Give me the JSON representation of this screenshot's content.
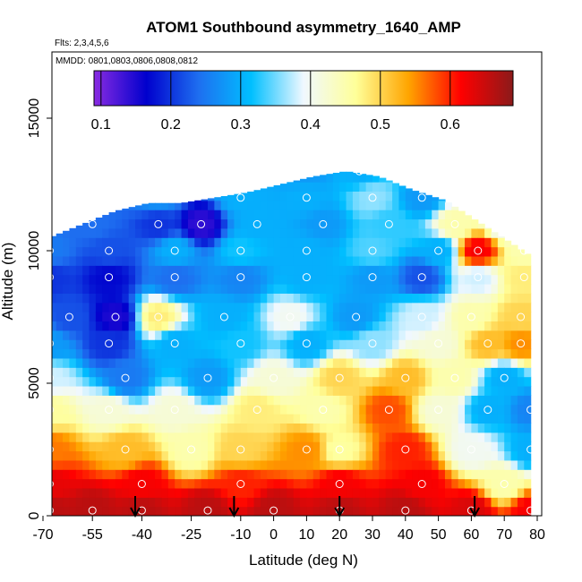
{
  "chart_data": {
    "type": "heatmap",
    "title": "ATOM1 Southbound asymmetry_1640_AMP",
    "flights_note": "Flts: 2,3,4,5,6",
    "dates_note": "MMDD: 0801,0803,0806,0808,0812",
    "xlabel": "Latitude (deg N)",
    "ylabel": "Altitude (m)",
    "xlim": [
      -70,
      80
    ],
    "ylim": [
      0,
      17500
    ],
    "x_ticks": [
      -70,
      -55,
      -40,
      -25,
      -10,
      0,
      10,
      20,
      30,
      40,
      50,
      60,
      70,
      80
    ],
    "y_ticks": [
      0,
      5000,
      10000,
      15000
    ],
    "colorbar": {
      "range": [
        0.09,
        0.69
      ],
      "ticks": [
        0.1,
        0.2,
        0.3,
        0.4,
        0.5,
        0.6
      ],
      "tick_labels": [
        "0.1",
        "0.2",
        "0.3",
        "0.4",
        "0.5",
        "0.6"
      ],
      "colors": [
        "#8a2be2",
        "#0000cd",
        "#1e6ff0",
        "#00bfff",
        "#f0f8ff",
        "#ffff99",
        "#ffa500",
        "#ff0000",
        "#8b1a1a"
      ]
    },
    "upper_boundary": {
      "lat": [
        -68,
        -58,
        -48,
        -38,
        -28,
        -18,
        -8,
        2,
        12,
        22,
        32,
        42,
        52,
        62,
        72,
        78
      ],
      "alt": [
        10500,
        11000,
        11500,
        11800,
        11800,
        12000,
        12200,
        12500,
        12800,
        13000,
        12800,
        12300,
        11900,
        11100,
        10300,
        9800
      ]
    },
    "profile_latitudes": [
      -42,
      -12,
      20,
      61
    ],
    "samples": [
      {
        "lat": -68,
        "alt": 200,
        "v": 0.66
      },
      {
        "lat": -55,
        "alt": 200,
        "v": 0.66
      },
      {
        "lat": -40,
        "alt": 200,
        "v": 0.66
      },
      {
        "lat": -20,
        "alt": 200,
        "v": 0.66
      },
      {
        "lat": 0,
        "alt": 200,
        "v": 0.66
      },
      {
        "lat": 20,
        "alt": 200,
        "v": 0.66
      },
      {
        "lat": 40,
        "alt": 200,
        "v": 0.66
      },
      {
        "lat": 60,
        "alt": 200,
        "v": 0.64
      },
      {
        "lat": 78,
        "alt": 200,
        "v": 0.62
      },
      {
        "lat": -68,
        "alt": 1200,
        "v": 0.63
      },
      {
        "lat": -40,
        "alt": 1200,
        "v": 0.62
      },
      {
        "lat": -10,
        "alt": 1200,
        "v": 0.6
      },
      {
        "lat": 20,
        "alt": 1200,
        "v": 0.62
      },
      {
        "lat": 45,
        "alt": 1200,
        "v": 0.62
      },
      {
        "lat": 70,
        "alt": 1200,
        "v": 0.45
      },
      {
        "lat": -68,
        "alt": 2500,
        "v": 0.56
      },
      {
        "lat": -45,
        "alt": 2500,
        "v": 0.52
      },
      {
        "lat": -25,
        "alt": 2500,
        "v": 0.45
      },
      {
        "lat": -10,
        "alt": 2500,
        "v": 0.5
      },
      {
        "lat": 10,
        "alt": 2500,
        "v": 0.55
      },
      {
        "lat": 20,
        "alt": 2500,
        "v": 0.46
      },
      {
        "lat": 40,
        "alt": 2500,
        "v": 0.6
      },
      {
        "lat": 60,
        "alt": 2500,
        "v": 0.4
      },
      {
        "lat": 78,
        "alt": 2500,
        "v": 0.3
      },
      {
        "lat": -68,
        "alt": 4000,
        "v": 0.46
      },
      {
        "lat": -50,
        "alt": 4000,
        "v": 0.42
      },
      {
        "lat": -30,
        "alt": 4000,
        "v": 0.42
      },
      {
        "lat": -5,
        "alt": 4000,
        "v": 0.48
      },
      {
        "lat": 15,
        "alt": 4000,
        "v": 0.45
      },
      {
        "lat": 35,
        "alt": 4000,
        "v": 0.58
      },
      {
        "lat": 50,
        "alt": 4000,
        "v": 0.42
      },
      {
        "lat": 65,
        "alt": 4000,
        "v": 0.3
      },
      {
        "lat": 78,
        "alt": 4000,
        "v": 0.26
      },
      {
        "lat": -68,
        "alt": 5200,
        "v": 0.38
      },
      {
        "lat": -45,
        "alt": 5200,
        "v": 0.25
      },
      {
        "lat": -20,
        "alt": 5200,
        "v": 0.28
      },
      {
        "lat": 0,
        "alt": 5200,
        "v": 0.42
      },
      {
        "lat": 20,
        "alt": 5200,
        "v": 0.5
      },
      {
        "lat": 40,
        "alt": 5200,
        "v": 0.52
      },
      {
        "lat": 55,
        "alt": 5200,
        "v": 0.45
      },
      {
        "lat": 70,
        "alt": 5200,
        "v": 0.3
      },
      {
        "lat": -68,
        "alt": 6500,
        "v": 0.28
      },
      {
        "lat": -50,
        "alt": 6500,
        "v": 0.2
      },
      {
        "lat": -30,
        "alt": 6500,
        "v": 0.3
      },
      {
        "lat": -10,
        "alt": 6500,
        "v": 0.32
      },
      {
        "lat": 10,
        "alt": 6500,
        "v": 0.3
      },
      {
        "lat": 30,
        "alt": 6500,
        "v": 0.36
      },
      {
        "lat": 50,
        "alt": 6500,
        "v": 0.42
      },
      {
        "lat": 65,
        "alt": 6500,
        "v": 0.52
      },
      {
        "lat": 75,
        "alt": 6500,
        "v": 0.55
      },
      {
        "lat": -62,
        "alt": 7500,
        "v": 0.22
      },
      {
        "lat": -48,
        "alt": 7500,
        "v": 0.15
      },
      {
        "lat": -35,
        "alt": 7500,
        "v": 0.48
      },
      {
        "lat": -15,
        "alt": 7500,
        "v": 0.3
      },
      {
        "lat": 5,
        "alt": 7500,
        "v": 0.4
      },
      {
        "lat": 25,
        "alt": 7500,
        "v": 0.28
      },
      {
        "lat": 45,
        "alt": 7500,
        "v": 0.38
      },
      {
        "lat": 60,
        "alt": 7500,
        "v": 0.45
      },
      {
        "lat": 75,
        "alt": 7500,
        "v": 0.5
      },
      {
        "lat": -68,
        "alt": 9000,
        "v": 0.2
      },
      {
        "lat": -50,
        "alt": 9000,
        "v": 0.17
      },
      {
        "lat": -30,
        "alt": 9000,
        "v": 0.24
      },
      {
        "lat": -10,
        "alt": 9000,
        "v": 0.26
      },
      {
        "lat": 10,
        "alt": 9000,
        "v": 0.3
      },
      {
        "lat": 30,
        "alt": 9000,
        "v": 0.28
      },
      {
        "lat": 45,
        "alt": 9000,
        "v": 0.22
      },
      {
        "lat": 62,
        "alt": 9000,
        "v": 0.38
      },
      {
        "lat": 76,
        "alt": 9000,
        "v": 0.48
      },
      {
        "lat": -68,
        "alt": 10000,
        "v": 0.25
      },
      {
        "lat": -50,
        "alt": 10000,
        "v": 0.22
      },
      {
        "lat": -30,
        "alt": 10000,
        "v": 0.3
      },
      {
        "lat": -10,
        "alt": 10000,
        "v": 0.32
      },
      {
        "lat": 10,
        "alt": 10000,
        "v": 0.3
      },
      {
        "lat": 30,
        "alt": 10000,
        "v": 0.34
      },
      {
        "lat": 50,
        "alt": 10000,
        "v": 0.3
      },
      {
        "lat": 62,
        "alt": 10000,
        "v": 0.62
      },
      {
        "lat": 76,
        "alt": 10000,
        "v": 0.45
      },
      {
        "lat": -55,
        "alt": 11000,
        "v": 0.24
      },
      {
        "lat": -35,
        "alt": 11000,
        "v": 0.2
      },
      {
        "lat": -22,
        "alt": 11000,
        "v": 0.14
      },
      {
        "lat": -5,
        "alt": 11000,
        "v": 0.3
      },
      {
        "lat": 15,
        "alt": 11000,
        "v": 0.28
      },
      {
        "lat": 35,
        "alt": 11000,
        "v": 0.33
      },
      {
        "lat": 55,
        "alt": 11000,
        "v": 0.45
      },
      {
        "lat": 70,
        "alt": 11000,
        "v": 0.4
      },
      {
        "lat": -35,
        "alt": 12000,
        "v": 0.27
      },
      {
        "lat": -10,
        "alt": 12000,
        "v": 0.3
      },
      {
        "lat": 10,
        "alt": 12000,
        "v": 0.3
      },
      {
        "lat": 30,
        "alt": 12000,
        "v": 0.36
      },
      {
        "lat": 45,
        "alt": 12000,
        "v": 0.28
      },
      {
        "lat": 10,
        "alt": 13000,
        "v": 0.28
      },
      {
        "lat": 26,
        "alt": 13000,
        "v": 0.3
      }
    ]
  }
}
